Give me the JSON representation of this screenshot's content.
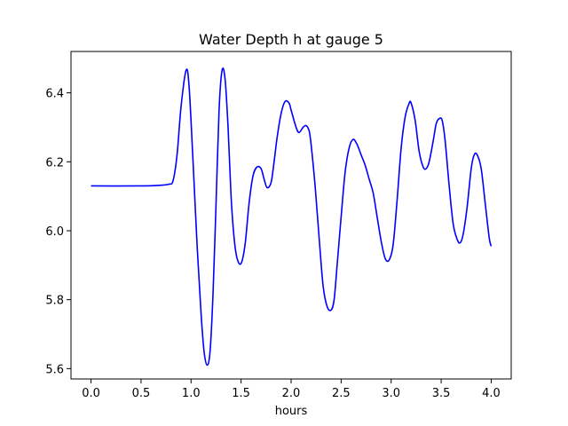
{
  "chart_data": {
    "type": "line",
    "title": "Water Depth h at gauge 5",
    "xlabel": "hours",
    "ylabel": "",
    "xlim": [
      -0.2,
      4.2
    ],
    "ylim": [
      5.57,
      6.52
    ],
    "xticks": [
      "0.0",
      "0.5",
      "1.0",
      "1.5",
      "2.0",
      "2.5",
      "3.0",
      "3.5",
      "4.0"
    ],
    "xtick_values": [
      0.0,
      0.5,
      1.0,
      1.5,
      2.0,
      2.5,
      3.0,
      3.5,
      4.0
    ],
    "yticks": [
      "5.6",
      "5.8",
      "6.0",
      "6.2",
      "6.4"
    ],
    "ytick_values": [
      5.6,
      5.8,
      6.0,
      6.2,
      6.4
    ],
    "grid": false,
    "series": [
      {
        "color": "#0000ff",
        "x": [
          0.0,
          0.5,
          0.7,
          0.78,
          0.82,
          0.86,
          0.9,
          0.95,
          0.98,
          1.02,
          1.06,
          1.1,
          1.13,
          1.16,
          1.19,
          1.22,
          1.25,
          1.28,
          1.31,
          1.34,
          1.37,
          1.4,
          1.43,
          1.46,
          1.5,
          1.54,
          1.58,
          1.62,
          1.66,
          1.7,
          1.73,
          1.76,
          1.8,
          1.83,
          1.86,
          1.9,
          1.94,
          1.98,
          2.0,
          2.05,
          2.08,
          2.12,
          2.15,
          2.18,
          2.2,
          2.24,
          2.28,
          2.32,
          2.36,
          2.4,
          2.43,
          2.46,
          2.5,
          2.54,
          2.58,
          2.62,
          2.66,
          2.7,
          2.74,
          2.78,
          2.82,
          2.86,
          2.9,
          2.94,
          2.98,
          3.02,
          3.06,
          3.1,
          3.14,
          3.18,
          3.2,
          3.24,
          3.28,
          3.32,
          3.35,
          3.38,
          3.42,
          3.45,
          3.48,
          3.51,
          3.54,
          3.58,
          3.62,
          3.66,
          3.69,
          3.72,
          3.76,
          3.8,
          3.83,
          3.86,
          3.9,
          3.94,
          3.98,
          4.0
        ],
        "y": [
          6.13,
          6.13,
          6.132,
          6.135,
          6.145,
          6.22,
          6.36,
          6.465,
          6.42,
          6.2,
          5.96,
          5.76,
          5.65,
          5.61,
          5.65,
          5.82,
          6.08,
          6.35,
          6.465,
          6.44,
          6.3,
          6.1,
          5.98,
          5.92,
          5.905,
          5.96,
          6.08,
          6.16,
          6.185,
          6.18,
          6.15,
          6.125,
          6.14,
          6.2,
          6.27,
          6.34,
          6.375,
          6.37,
          6.35,
          6.3,
          6.285,
          6.3,
          6.305,
          6.29,
          6.25,
          6.13,
          5.98,
          5.84,
          5.78,
          5.77,
          5.8,
          5.9,
          6.04,
          6.17,
          6.24,
          6.265,
          6.25,
          6.22,
          6.19,
          6.15,
          6.11,
          6.04,
          5.97,
          5.92,
          5.915,
          5.96,
          6.09,
          6.24,
          6.33,
          6.37,
          6.37,
          6.32,
          6.23,
          6.185,
          6.18,
          6.2,
          6.26,
          6.31,
          6.325,
          6.32,
          6.26,
          6.13,
          6.02,
          5.975,
          5.965,
          5.99,
          6.07,
          6.18,
          6.22,
          6.22,
          6.18,
          6.08,
          5.98,
          5.955
        ]
      }
    ]
  }
}
